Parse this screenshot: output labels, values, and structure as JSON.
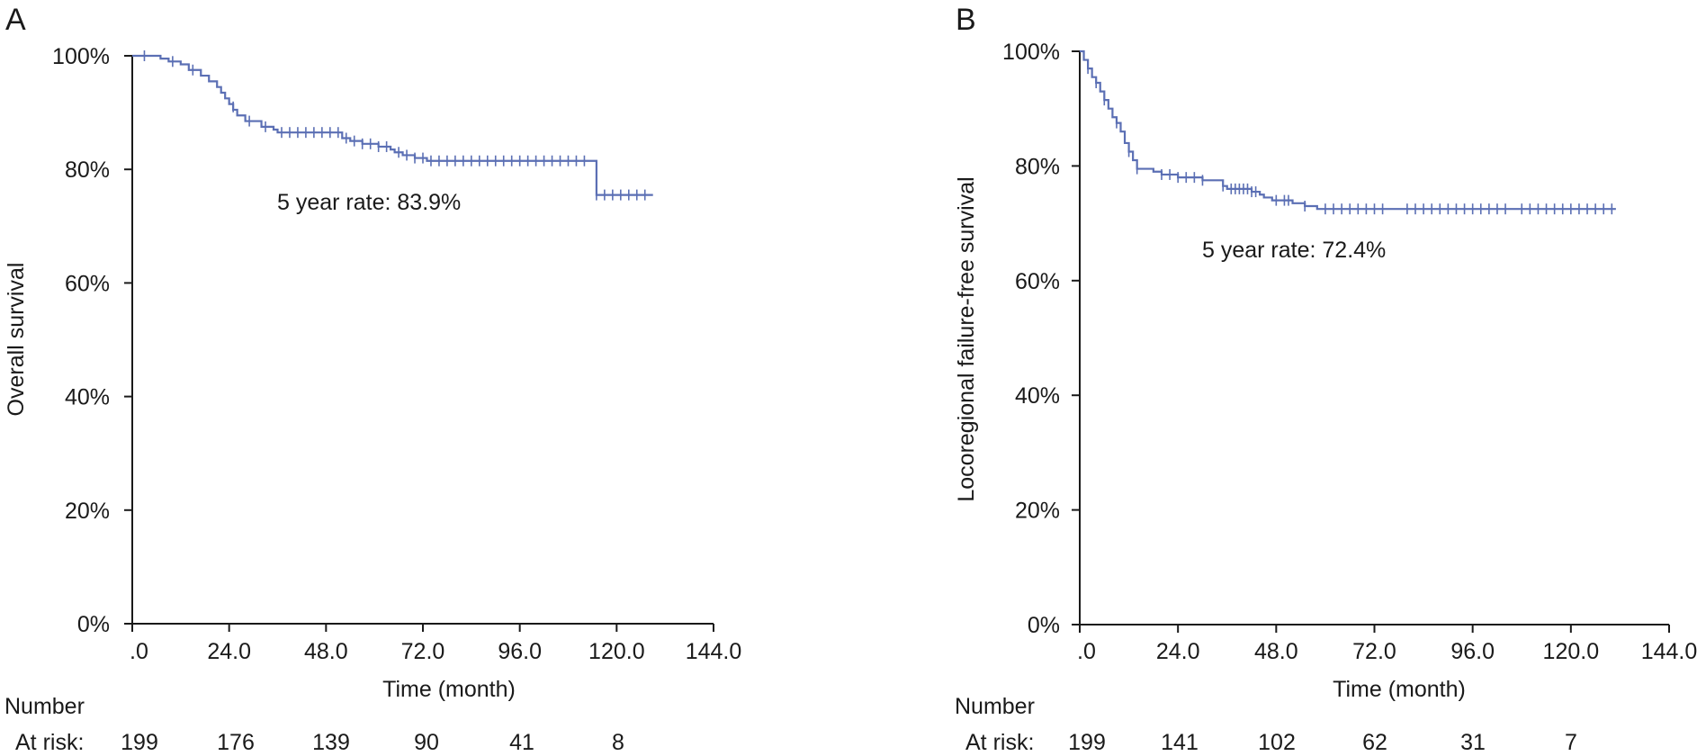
{
  "colors": {
    "curve": "#5b6fb4",
    "axis": "#1a1a1a"
  },
  "chart_data": [
    {
      "panel_label": "A",
      "type": "line",
      "subtype": "kaplan-meier step",
      "xlabel": "Time (month)",
      "ylabel": "Overall survival",
      "xlim": [
        0,
        144
      ],
      "ylim": [
        0,
        100
      ],
      "x_tick_labels": [
        ".0",
        "24.0",
        "48.0",
        "72.0",
        "96.0",
        "120.0",
        "144.0"
      ],
      "y_tick_labels": [
        "0%",
        "20%",
        "40%",
        "60%",
        "80%",
        "100%"
      ],
      "annotation": "5 year rate: 83.9%",
      "at_risk": {
        "header": "Number",
        "label": "At risk:",
        "values": [
          "199",
          "176",
          "139",
          "90",
          "41",
          "8"
        ]
      },
      "series": [
        {
          "step_points": [
            [
              0,
              100
            ],
            [
              5,
              100
            ],
            [
              7,
              99.5
            ],
            [
              9,
              99
            ],
            [
              12,
              98.5
            ],
            [
              14,
              97.5
            ],
            [
              17,
              96.5
            ],
            [
              19,
              95.5
            ],
            [
              21,
              94.5
            ],
            [
              22,
              93.5
            ],
            [
              23,
              92.5
            ],
            [
              24,
              91.5
            ],
            [
              25,
              90.5
            ],
            [
              26,
              89.5
            ],
            [
              28,
              88.5
            ],
            [
              32,
              87.5
            ],
            [
              35,
              87
            ],
            [
              36,
              86.5
            ],
            [
              51,
              86.5
            ],
            [
              52,
              85.5
            ],
            [
              54,
              85
            ],
            [
              57,
              84.5
            ],
            [
              61,
              84
            ],
            [
              64,
              83.5
            ],
            [
              65,
              83
            ],
            [
              67,
              82.5
            ],
            [
              70,
              82
            ],
            [
              73,
              81.5
            ],
            [
              115,
              81.5
            ],
            [
              115,
              75.5
            ],
            [
              129,
              75.5
            ]
          ],
          "censored": [
            [
              3,
              100
            ],
            [
              10,
              99
            ],
            [
              15,
              97.5
            ],
            [
              25,
              91
            ],
            [
              29,
              88.5
            ],
            [
              33,
              87.5
            ],
            [
              37,
              86.5
            ],
            [
              39,
              86.5
            ],
            [
              41,
              86.5
            ],
            [
              43,
              86.5
            ],
            [
              45,
              86.5
            ],
            [
              47,
              86.5
            ],
            [
              49,
              86.5
            ],
            [
              51,
              86.5
            ],
            [
              53,
              85.5
            ],
            [
              55,
              85
            ],
            [
              57,
              84.5
            ],
            [
              59,
              84.5
            ],
            [
              61,
              84
            ],
            [
              63,
              84
            ],
            [
              66,
              83
            ],
            [
              68,
              82.5
            ],
            [
              70,
              82
            ],
            [
              72,
              82
            ],
            [
              74,
              81.5
            ],
            [
              76,
              81.5
            ],
            [
              78,
              81.5
            ],
            [
              80,
              81.5
            ],
            [
              82,
              81.5
            ],
            [
              84,
              81.5
            ],
            [
              86,
              81.5
            ],
            [
              88,
              81.5
            ],
            [
              90,
              81.5
            ],
            [
              92,
              81.5
            ],
            [
              94,
              81.5
            ],
            [
              96,
              81.5
            ],
            [
              98,
              81.5
            ],
            [
              100,
              81.5
            ],
            [
              102,
              81.5
            ],
            [
              104,
              81.5
            ],
            [
              106,
              81.5
            ],
            [
              108,
              81.5
            ],
            [
              110,
              81.5
            ],
            [
              112,
              81.5
            ],
            [
              115,
              75.5
            ],
            [
              117,
              75.5
            ],
            [
              119,
              75.5
            ],
            [
              121,
              75.5
            ],
            [
              123,
              75.5
            ],
            [
              125,
              75.5
            ],
            [
              127,
              75.5
            ]
          ]
        }
      ]
    },
    {
      "panel_label": "B",
      "type": "line",
      "subtype": "kaplan-meier step",
      "xlabel": "Time (month)",
      "ylabel": "Locoregional failure-free survival",
      "xlim": [
        0,
        144
      ],
      "ylim": [
        0,
        100
      ],
      "x_tick_labels": [
        ".0",
        "24.0",
        "48.0",
        "72.0",
        "96.0",
        "120.0",
        "144.0"
      ],
      "y_tick_labels": [
        "0%",
        "20%",
        "40%",
        "60%",
        "80%",
        "100%"
      ],
      "annotation": "5 year rate: 72.4%",
      "at_risk": {
        "header": "Number",
        "label": "At risk:",
        "values": [
          "199",
          "141",
          "102",
          "62",
          "31",
          "7"
        ]
      },
      "series": [
        {
          "step_points": [
            [
              0,
              100
            ],
            [
              1,
              98.5
            ],
            [
              2,
              97
            ],
            [
              3,
              95.5
            ],
            [
              4,
              94.5
            ],
            [
              5,
              93
            ],
            [
              6,
              91.5
            ],
            [
              7,
              90
            ],
            [
              8,
              88.5
            ],
            [
              9,
              87.5
            ],
            [
              10,
              86
            ],
            [
              11,
              84
            ],
            [
              12,
              82.5
            ],
            [
              13,
              81
            ],
            [
              14,
              79.5
            ],
            [
              18,
              79
            ],
            [
              20,
              78.5
            ],
            [
              24,
              78
            ],
            [
              30,
              77.5
            ],
            [
              34,
              77.5
            ],
            [
              35,
              76.5
            ],
            [
              36,
              76
            ],
            [
              42,
              75.5
            ],
            [
              44,
              75
            ],
            [
              45,
              74.5
            ],
            [
              47,
              74
            ],
            [
              52,
              73.5
            ],
            [
              55,
              73
            ],
            [
              58,
              72.5
            ],
            [
              131,
              72.5
            ]
          ],
          "censored": [
            [
              2,
              97
            ],
            [
              4,
              94.5
            ],
            [
              6,
              91.5
            ],
            [
              9,
              87.5
            ],
            [
              12,
              82.5
            ],
            [
              14,
              79.5
            ],
            [
              20,
              78.5
            ],
            [
              22,
              78.5
            ],
            [
              24,
              78
            ],
            [
              26,
              78
            ],
            [
              28,
              78
            ],
            [
              30,
              77.5
            ],
            [
              35,
              76.5
            ],
            [
              37,
              76
            ],
            [
              38,
              76
            ],
            [
              39,
              76
            ],
            [
              40,
              76
            ],
            [
              41,
              76
            ],
            [
              42,
              75.5
            ],
            [
              43,
              75.5
            ],
            [
              48,
              74
            ],
            [
              50,
              74
            ],
            [
              51,
              74
            ],
            [
              55,
              73
            ],
            [
              60,
              72.5
            ],
            [
              62,
              72.5
            ],
            [
              64,
              72.5
            ],
            [
              66,
              72.5
            ],
            [
              68,
              72.5
            ],
            [
              70,
              72.5
            ],
            [
              72,
              72.5
            ],
            [
              74,
              72.5
            ],
            [
              80,
              72.5
            ],
            [
              82,
              72.5
            ],
            [
              84,
              72.5
            ],
            [
              86,
              72.5
            ],
            [
              88,
              72.5
            ],
            [
              90,
              72.5
            ],
            [
              92,
              72.5
            ],
            [
              94,
              72.5
            ],
            [
              96,
              72.5
            ],
            [
              98,
              72.5
            ],
            [
              100,
              72.5
            ],
            [
              102,
              72.5
            ],
            [
              104,
              72.5
            ],
            [
              108,
              72.5
            ],
            [
              110,
              72.5
            ],
            [
              112,
              72.5
            ],
            [
              114,
              72.5
            ],
            [
              116,
              72.5
            ],
            [
              118,
              72.5
            ],
            [
              120,
              72.5
            ],
            [
              122,
              72.5
            ],
            [
              124,
              72.5
            ],
            [
              126,
              72.5
            ],
            [
              128,
              72.5
            ],
            [
              130,
              72.5
            ]
          ]
        }
      ]
    }
  ]
}
